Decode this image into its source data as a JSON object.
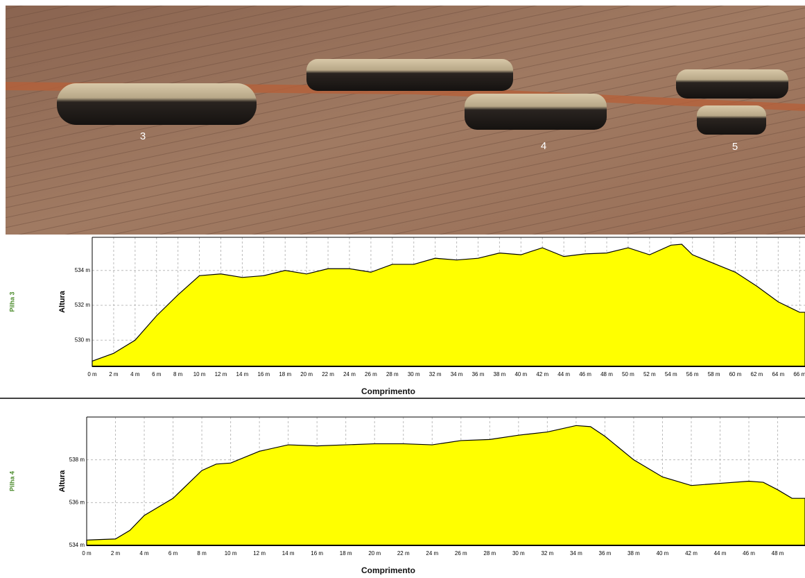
{
  "photo": {
    "labels": [
      "3",
      "4",
      "5"
    ]
  },
  "chart_data": [
    {
      "type": "area",
      "side_label": "Pilha 3",
      "ylabel": "Altura",
      "xlabel": "Comprimento",
      "grid": true,
      "xlim": [
        0,
        66.5
      ],
      "ylim": [
        528.5,
        535.9
      ],
      "xticks": [
        {
          "value": 0,
          "label": "0 m"
        },
        {
          "value": 2,
          "label": "2 m"
        },
        {
          "value": 4,
          "label": "4 m"
        },
        {
          "value": 6,
          "label": "6 m"
        },
        {
          "value": 8,
          "label": "8 m"
        },
        {
          "value": 10,
          "label": "10 m"
        },
        {
          "value": 12,
          "label": "12 m"
        },
        {
          "value": 14,
          "label": "14 m"
        },
        {
          "value": 16,
          "label": "16 m"
        },
        {
          "value": 18,
          "label": "18 m"
        },
        {
          "value": 20,
          "label": "20 m"
        },
        {
          "value": 22,
          "label": "22 m"
        },
        {
          "value": 24,
          "label": "24 m"
        },
        {
          "value": 26,
          "label": "26 m"
        },
        {
          "value": 28,
          "label": "28 m"
        },
        {
          "value": 30,
          "label": "30 m"
        },
        {
          "value": 32,
          "label": "32 m"
        },
        {
          "value": 34,
          "label": "34 m"
        },
        {
          "value": 36,
          "label": "36 m"
        },
        {
          "value": 38,
          "label": "38 m"
        },
        {
          "value": 40,
          "label": "40 m"
        },
        {
          "value": 42,
          "label": "42 m"
        },
        {
          "value": 44,
          "label": "44 m"
        },
        {
          "value": 46,
          "label": "46 m"
        },
        {
          "value": 48,
          "label": "48 m"
        },
        {
          "value": 50,
          "label": "50 m"
        },
        {
          "value": 52,
          "label": "52 m"
        },
        {
          "value": 54,
          "label": "54 m"
        },
        {
          "value": 56,
          "label": "56 m"
        },
        {
          "value": 58,
          "label": "58 m"
        },
        {
          "value": 60,
          "label": "60 m"
        },
        {
          "value": 62,
          "label": "62 m"
        },
        {
          "value": 64,
          "label": "64 m"
        },
        {
          "value": 66,
          "label": "66 m"
        }
      ],
      "yticks": [
        {
          "value": 530,
          "label": "530 m"
        },
        {
          "value": 532,
          "label": "532 m"
        },
        {
          "value": 534,
          "label": "534 m"
        }
      ],
      "x": [
        0,
        2,
        4,
        6,
        8,
        10,
        12,
        14,
        16,
        18,
        20,
        22,
        24,
        26,
        28,
        30,
        32,
        34,
        36,
        38,
        40,
        42,
        44,
        46,
        48,
        50,
        52,
        54,
        55,
        56,
        58,
        60,
        62,
        64,
        66,
        66.5
      ],
      "series": [
        {
          "color": "#ffff00",
          "values": [
            528.8,
            529.25,
            530.0,
            531.4,
            532.6,
            533.7,
            533.8,
            533.6,
            533.7,
            534.0,
            533.8,
            534.1,
            534.1,
            533.9,
            534.35,
            534.35,
            534.7,
            534.6,
            534.7,
            535.0,
            534.9,
            535.3,
            534.8,
            534.95,
            535.0,
            535.3,
            534.9,
            535.45,
            535.5,
            534.9,
            534.4,
            533.9,
            533.1,
            532.2,
            531.6,
            531.6
          ]
        }
      ]
    },
    {
      "type": "area",
      "side_label": "Pilha 4",
      "ylabel": "Altura",
      "xlabel": "Comprimento",
      "grid": true,
      "xlim": [
        0,
        49.9
      ],
      "ylim": [
        534,
        540
      ],
      "xticks": [
        {
          "value": 0,
          "label": "0 m"
        },
        {
          "value": 2,
          "label": "2 m"
        },
        {
          "value": 4,
          "label": "4 m"
        },
        {
          "value": 6,
          "label": "6 m"
        },
        {
          "value": 8,
          "label": "8 m"
        },
        {
          "value": 10,
          "label": "10 m"
        },
        {
          "value": 12,
          "label": "12 m"
        },
        {
          "value": 14,
          "label": "14 m"
        },
        {
          "value": 16,
          "label": "16 m"
        },
        {
          "value": 18,
          "label": "18 m"
        },
        {
          "value": 20,
          "label": "20 m"
        },
        {
          "value": 22,
          "label": "22 m"
        },
        {
          "value": 24,
          "label": "24 m"
        },
        {
          "value": 26,
          "label": "26 m"
        },
        {
          "value": 28,
          "label": "28 m"
        },
        {
          "value": 30,
          "label": "30 m"
        },
        {
          "value": 32,
          "label": "32 m"
        },
        {
          "value": 34,
          "label": "34 m"
        },
        {
          "value": 36,
          "label": "36 m"
        },
        {
          "value": 38,
          "label": "38 m"
        },
        {
          "value": 40,
          "label": "40 m"
        },
        {
          "value": 42,
          "label": "42 m"
        },
        {
          "value": 44,
          "label": "44 m"
        },
        {
          "value": 46,
          "label": "46 m"
        },
        {
          "value": 48,
          "label": "48 m"
        }
      ],
      "yticks": [
        {
          "value": 534,
          "label": "534 m"
        },
        {
          "value": 536,
          "label": "536 m"
        },
        {
          "value": 538,
          "label": "538 m"
        }
      ],
      "x": [
        0,
        2,
        3,
        4,
        6,
        8,
        9,
        10,
        12,
        14,
        16,
        18,
        20,
        22,
        24,
        26,
        28,
        30,
        32,
        34,
        35,
        36,
        38,
        40,
        42,
        44,
        46,
        47,
        48,
        49,
        49.9
      ],
      "series": [
        {
          "color": "#ffff00",
          "values": [
            534.25,
            534.3,
            534.7,
            535.4,
            536.2,
            537.5,
            537.8,
            537.85,
            538.4,
            538.7,
            538.65,
            538.7,
            538.75,
            538.75,
            538.7,
            538.9,
            538.95,
            539.15,
            539.3,
            539.6,
            539.55,
            539.1,
            538.0,
            537.2,
            536.8,
            536.9,
            537.0,
            536.95,
            536.6,
            536.2,
            536.2
          ]
        }
      ]
    }
  ]
}
